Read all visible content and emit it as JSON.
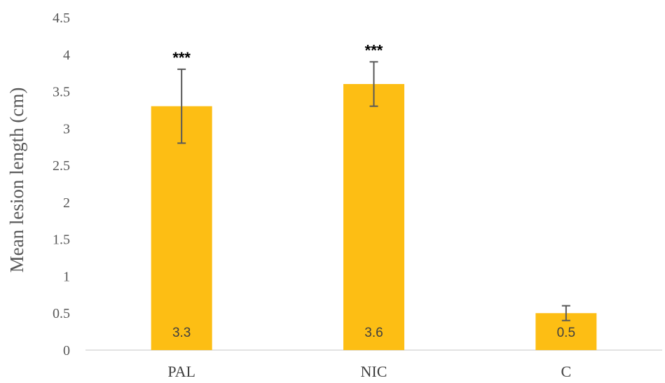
{
  "chart_data": {
    "type": "bar",
    "title": "",
    "xlabel": "",
    "ylabel": "Mean lesion length (cm)",
    "ylim": [
      0,
      4.5
    ],
    "yticks": [
      0,
      0.5,
      1,
      1.5,
      2,
      2.5,
      3,
      3.5,
      4,
      4.5
    ],
    "ytick_labels": [
      "0",
      "0.5",
      "1",
      "1.5",
      "2",
      "2.5",
      "3",
      "3.5",
      "4",
      "4.5"
    ],
    "categories": [
      "PAL",
      "NIC",
      "C"
    ],
    "values": [
      3.3,
      3.6,
      0.5
    ],
    "value_labels": [
      "3.3",
      "3.6",
      "0.5"
    ],
    "error": [
      0.5,
      0.3,
      0.1
    ],
    "significance": [
      "***",
      "***",
      ""
    ],
    "bar_color": "#FDBE14",
    "error_color": "#595959",
    "grid": false,
    "legend": "none"
  }
}
